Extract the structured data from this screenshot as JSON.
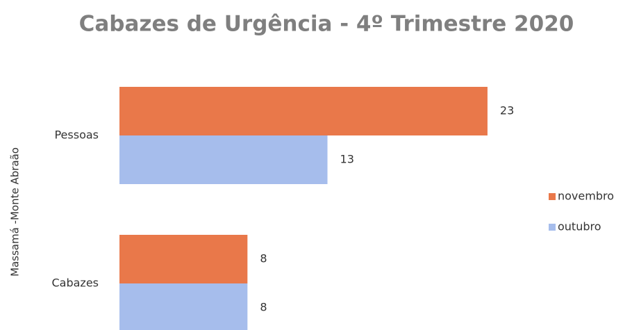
{
  "chart_data": {
    "type": "hbar",
    "title": "Cabazes de Urgência - 4º Trimestre 2020",
    "y_label": "Massamá -Monte Abraão",
    "categories": [
      "Pessoas",
      "Cabazes"
    ],
    "series": [
      {
        "name": "novembro",
        "color": "#e9784a",
        "values": [
          23,
          8
        ]
      },
      {
        "name": "outubro",
        "color": "#a6bdec",
        "values": [
          13,
          8
        ]
      }
    ],
    "xlim": [
      0,
      25
    ],
    "legend": "right"
  }
}
